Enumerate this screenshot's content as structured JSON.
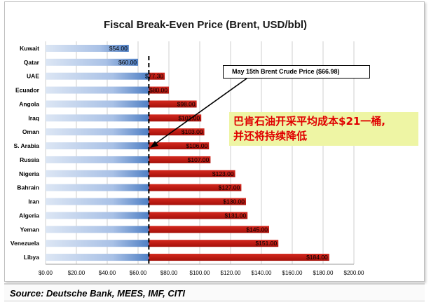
{
  "chart_data": {
    "type": "bar",
    "orientation": "horizontal",
    "title": "Fiscal Break-Even Price (Brent, USD/bbl)",
    "categories": [
      "Kuwait",
      "Qatar",
      "UAE",
      "Ecuador",
      "Angola",
      "Iraq",
      "Oman",
      "S. Arabia",
      "Russia",
      "Nigeria",
      "Bahrain",
      "Iran",
      "Algeria",
      "Yeman",
      "Venezuela",
      "Libya"
    ],
    "values": [
      54,
      60,
      77.3,
      80,
      98,
      101,
      103,
      106,
      107,
      123,
      127,
      130,
      131,
      145,
      151,
      184
    ],
    "value_labels": [
      "$54.00",
      "$60.00",
      "$77.30",
      "$80.00",
      "$98.00",
      "$101.00",
      "$103.00",
      "$106.00",
      "$107.00",
      "$123.00",
      "$127.00",
      "$130.00",
      "$131.00",
      "$145.00",
      "$151.00",
      "$184.00"
    ],
    "xlim": [
      0,
      200
    ],
    "x_ticks": [
      0,
      20,
      40,
      60,
      80,
      100,
      120,
      140,
      160,
      180,
      200
    ],
    "x_tick_labels": [
      "$0.00",
      "$20.00",
      "$40.00",
      "$60.00",
      "$80.00",
      "$100.00",
      "$120.00",
      "$140.00",
      "$160.00",
      "$180.00",
      "$200.00"
    ],
    "reference_value": 66.98,
    "grid": "vertical",
    "colors": {
      "below_reference": "#4f7fc4",
      "below_reference_light": "#dce6f4",
      "above_reference": "#c0140c",
      "grid": "#cfcfcf"
    }
  },
  "annotations": {
    "price_callout": "May 15th Brent Crude Price  ($66.98)",
    "note_line1": "巴肯石油开采平均成本$21一桶,",
    "note_line2": "并还将持续降低"
  },
  "source": "Source: Deutsche Bank, MEES, IMF, CITI"
}
